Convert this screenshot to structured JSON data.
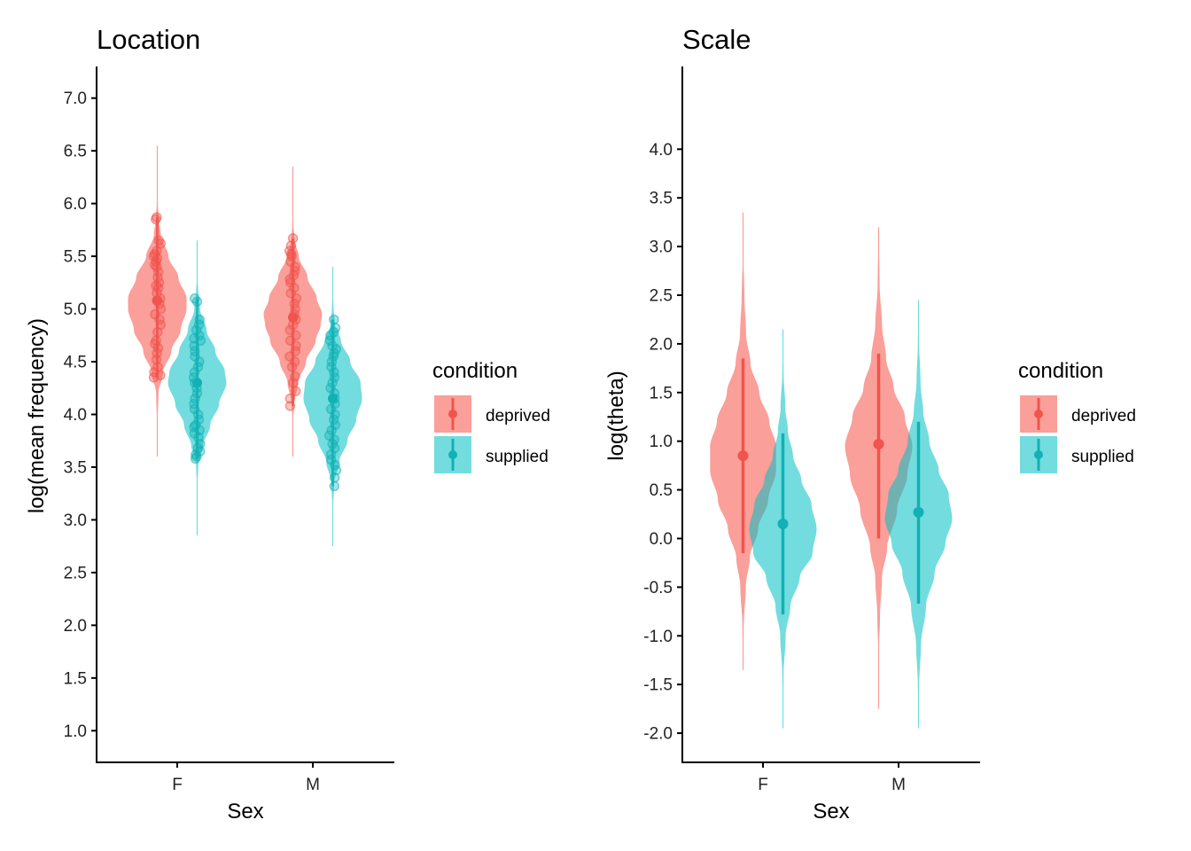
{
  "colors": {
    "deprived": "#F8766D",
    "supplied": "#00BFC4",
    "deprived_line": "#F0544C",
    "supplied_line": "#11B1B4"
  },
  "chart_data": [
    {
      "type": "violin",
      "title": "Location",
      "xlabel": "Sex",
      "ylabel": "log(mean frequency)",
      "categories": [
        "F",
        "M"
      ],
      "ylim": [
        0.7,
        7.3
      ],
      "yticks": [
        "1.0",
        "1.5",
        "2.0",
        "2.5",
        "3.0",
        "3.5",
        "4.0",
        "4.5",
        "5.0",
        "5.5",
        "6.0",
        "6.5",
        "7.0"
      ],
      "legend": {
        "title": "condition",
        "entries": [
          "deprived",
          "supplied"
        ],
        "position": "right"
      },
      "series": [
        {
          "name": "deprived",
          "groups": [
            {
              "category": "F",
              "min": 3.6,
              "max": 6.55,
              "median": 5.08,
              "density": [
                [
                  3.6,
                  0
                ],
                [
                  3.9,
                  0.01
                ],
                [
                  4.2,
                  0.04
                ],
                [
                  4.4,
                  0.2
                ],
                [
                  4.6,
                  0.48
                ],
                [
                  4.8,
                  0.8
                ],
                [
                  5.0,
                  1.0
                ],
                [
                  5.1,
                  1.0
                ],
                [
                  5.3,
                  0.72
                ],
                [
                  5.5,
                  0.38
                ],
                [
                  5.7,
                  0.12
                ],
                [
                  5.85,
                  0.05
                ],
                [
                  6.0,
                  0.02
                ],
                [
                  6.3,
                  0.01
                ],
                [
                  6.55,
                  0
                ]
              ],
              "points": [
                4.35,
                4.37,
                4.4,
                4.45,
                4.52,
                4.58,
                4.63,
                4.67,
                4.7,
                4.78,
                4.85,
                4.9,
                4.95,
                5.0,
                5.05,
                5.08,
                5.1,
                5.15,
                5.2,
                5.22,
                5.25,
                5.3,
                5.35,
                5.4,
                5.42,
                5.45,
                5.48,
                5.5,
                5.52,
                5.55,
                5.62,
                5.65,
                5.85,
                5.87
              ]
            },
            {
              "category": "M",
              "min": 3.6,
              "max": 6.35,
              "median": 4.92,
              "density": [
                [
                  3.6,
                  0
                ],
                [
                  3.9,
                  0.01
                ],
                [
                  4.1,
                  0.04
                ],
                [
                  4.3,
                  0.18
                ],
                [
                  4.5,
                  0.45
                ],
                [
                  4.7,
                  0.78
                ],
                [
                  4.85,
                  0.95
                ],
                [
                  4.95,
                  1.0
                ],
                [
                  5.1,
                  0.82
                ],
                [
                  5.3,
                  0.5
                ],
                [
                  5.5,
                  0.2
                ],
                [
                  5.65,
                  0.06
                ],
                [
                  5.8,
                  0.02
                ],
                [
                  6.1,
                  0.01
                ],
                [
                  6.35,
                  0
                ]
              ],
              "points": [
                4.08,
                4.15,
                4.22,
                4.3,
                4.36,
                4.45,
                4.5,
                4.55,
                4.6,
                4.65,
                4.7,
                4.75,
                4.8,
                4.85,
                4.9,
                4.92,
                4.95,
                5.0,
                5.05,
                5.1,
                5.15,
                5.2,
                5.25,
                5.28,
                5.32,
                5.36,
                5.4,
                5.45,
                5.5,
                5.52,
                5.55,
                5.6,
                5.67
              ]
            }
          ]
        },
        {
          "name": "supplied",
          "groups": [
            {
              "category": "F",
              "min": 2.85,
              "max": 5.65,
              "median": 4.3,
              "density": [
                [
                  2.85,
                  0
                ],
                [
                  3.3,
                  0.01
                ],
                [
                  3.55,
                  0.04
                ],
                [
                  3.7,
                  0.2
                ],
                [
                  3.9,
                  0.45
                ],
                [
                  4.1,
                  0.75
                ],
                [
                  4.3,
                  1.0
                ],
                [
                  4.4,
                  0.95
                ],
                [
                  4.6,
                  0.62
                ],
                [
                  4.8,
                  0.32
                ],
                [
                  5.0,
                  0.1
                ],
                [
                  5.15,
                  0.04
                ],
                [
                  5.3,
                  0.01
                ],
                [
                  5.65,
                  0
                ]
              ],
              "points": [
                3.58,
                3.6,
                3.62,
                3.65,
                3.68,
                3.72,
                3.78,
                3.82,
                3.85,
                3.88,
                3.9,
                3.95,
                4.0,
                4.05,
                4.1,
                4.15,
                4.2,
                4.25,
                4.3,
                4.35,
                4.4,
                4.45,
                4.5,
                4.55,
                4.6,
                4.65,
                4.7,
                4.72,
                4.75,
                4.8,
                4.85,
                4.9,
                5.07,
                5.1
              ]
            },
            {
              "category": "M",
              "min": 2.75,
              "max": 5.4,
              "median": 4.15,
              "density": [
                [
                  2.75,
                  0
                ],
                [
                  3.1,
                  0.01
                ],
                [
                  3.35,
                  0.05
                ],
                [
                  3.55,
                  0.22
                ],
                [
                  3.75,
                  0.5
                ],
                [
                  3.95,
                  0.8
                ],
                [
                  4.15,
                  1.0
                ],
                [
                  4.3,
                  0.95
                ],
                [
                  4.5,
                  0.6
                ],
                [
                  4.7,
                  0.28
                ],
                [
                  4.85,
                  0.08
                ],
                [
                  5.0,
                  0.03
                ],
                [
                  5.15,
                  0.01
                ],
                [
                  5.4,
                  0
                ]
              ],
              "points": [
                3.32,
                3.4,
                3.47,
                3.52,
                3.57,
                3.62,
                3.68,
                3.72,
                3.76,
                3.8,
                3.85,
                3.9,
                3.95,
                4.0,
                4.05,
                4.1,
                4.15,
                4.2,
                4.25,
                4.3,
                4.35,
                4.4,
                4.45,
                4.5,
                4.55,
                4.58,
                4.62,
                4.65,
                4.7,
                4.75,
                4.78,
                4.82,
                4.9
              ]
            }
          ]
        }
      ]
    },
    {
      "type": "violin",
      "title": "Scale",
      "xlabel": "Sex",
      "ylabel": "log(theta)",
      "categories": [
        "F",
        "M"
      ],
      "ylim": [
        -2.3,
        4.85
      ],
      "yticks": [
        "-2.0",
        "-1.5",
        "-1.0",
        "-0.5",
        "0.0",
        "0.5",
        "1.0",
        "1.5",
        "2.0",
        "2.5",
        "3.0",
        "3.5",
        "4.0"
      ],
      "legend": {
        "title": "condition",
        "entries": [
          "deprived",
          "supplied"
        ],
        "position": "right"
      },
      "series": [
        {
          "name": "deprived",
          "groups": [
            {
              "category": "F",
              "min": -1.35,
              "max": 3.35,
              "median": 0.85,
              "interval": [
                -0.15,
                1.85
              ],
              "density": [
                [
                  -1.35,
                  0
                ],
                [
                  -0.9,
                  0.02
                ],
                [
                  -0.5,
                  0.08
                ],
                [
                  -0.2,
                  0.2
                ],
                [
                  0.1,
                  0.45
                ],
                [
                  0.4,
                  0.75
                ],
                [
                  0.7,
                  0.98
                ],
                [
                  0.95,
                  0.98
                ],
                [
                  1.2,
                  0.78
                ],
                [
                  1.5,
                  0.48
                ],
                [
                  1.8,
                  0.22
                ],
                [
                  2.1,
                  0.09
                ],
                [
                  2.5,
                  0.04
                ],
                [
                  2.9,
                  0.01
                ],
                [
                  3.35,
                  0
                ]
              ]
            },
            {
              "category": "M",
              "min": -1.75,
              "max": 3.2,
              "median": 0.97,
              "interval": [
                0.0,
                1.9
              ],
              "density": [
                [
                  -1.75,
                  0
                ],
                [
                  -1.2,
                  0.01
                ],
                [
                  -0.8,
                  0.04
                ],
                [
                  -0.4,
                  0.1
                ],
                [
                  -0.1,
                  0.25
                ],
                [
                  0.3,
                  0.55
                ],
                [
                  0.65,
                  0.85
                ],
                [
                  0.95,
                  1.0
                ],
                [
                  1.25,
                  0.78
                ],
                [
                  1.55,
                  0.45
                ],
                [
                  1.85,
                  0.22
                ],
                [
                  2.2,
                  0.1
                ],
                [
                  2.6,
                  0.03
                ],
                [
                  3.2,
                  0
                ]
              ]
            }
          ]
        },
        {
          "name": "supplied",
          "groups": [
            {
              "category": "F",
              "min": -1.95,
              "max": 2.15,
              "median": 0.15,
              "interval": [
                -0.78,
                1.08
              ],
              "density": [
                [
                  -1.95,
                  0
                ],
                [
                  -1.4,
                  0.02
                ],
                [
                  -1.0,
                  0.08
                ],
                [
                  -0.7,
                  0.22
                ],
                [
                  -0.4,
                  0.5
                ],
                [
                  -0.15,
                  0.88
                ],
                [
                  0.1,
                  1.0
                ],
                [
                  0.35,
                  0.85
                ],
                [
                  0.6,
                  0.55
                ],
                [
                  0.85,
                  0.3
                ],
                [
                  1.1,
                  0.15
                ],
                [
                  1.35,
                  0.07
                ],
                [
                  1.7,
                  0.02
                ],
                [
                  2.15,
                  0
                ]
              ]
            },
            {
              "category": "M",
              "min": -1.95,
              "max": 2.45,
              "median": 0.27,
              "interval": [
                -0.67,
                1.2
              ],
              "density": [
                [
                  -1.95,
                  0
                ],
                [
                  -1.5,
                  0.02
                ],
                [
                  -1.1,
                  0.07
                ],
                [
                  -0.7,
                  0.22
                ],
                [
                  -0.35,
                  0.48
                ],
                [
                  -0.05,
                  0.8
                ],
                [
                  0.2,
                  1.0
                ],
                [
                  0.45,
                  0.9
                ],
                [
                  0.7,
                  0.6
                ],
                [
                  1.0,
                  0.32
                ],
                [
                  1.3,
                  0.14
                ],
                [
                  1.6,
                  0.06
                ],
                [
                  2.0,
                  0.02
                ],
                [
                  2.45,
                  0
                ]
              ]
            }
          ]
        }
      ]
    }
  ]
}
